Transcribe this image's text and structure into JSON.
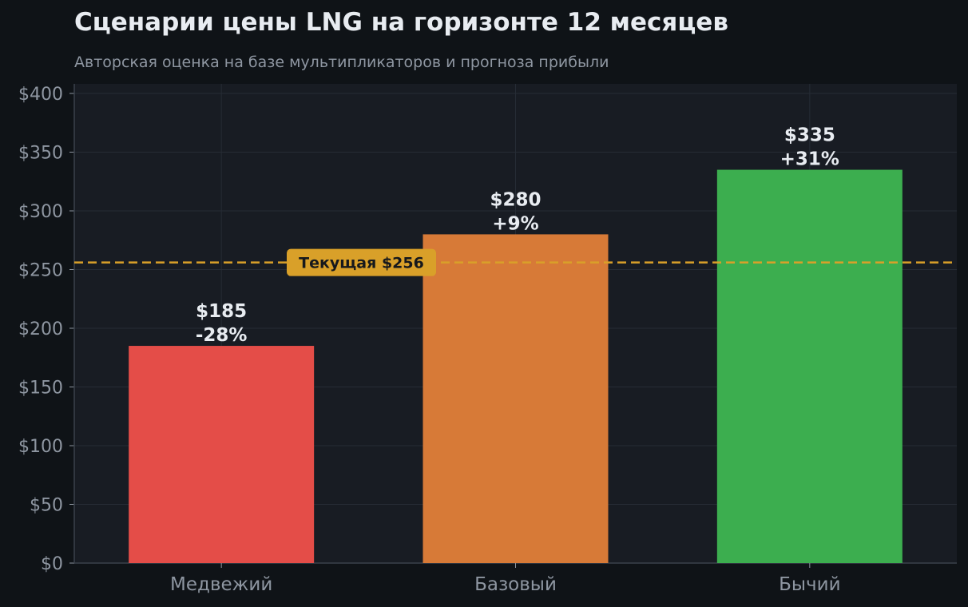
{
  "chart_data": {
    "type": "bar",
    "title": "Сценарии цены LNG на горизонте 12 месяцев",
    "subtitle": "Авторская оценка на базе мультипликаторов и прогноза прибыли",
    "categories": [
      "Медвежий",
      "Базовый",
      "Бычий"
    ],
    "values": [
      185,
      280,
      335
    ],
    "value_labels": [
      "$185",
      "$280",
      "$335"
    ],
    "change_labels": [
      "-28%",
      "+9%",
      "+31%"
    ],
    "bar_colors": [
      "#e44d48",
      "#d77a37",
      "#3cae4f"
    ],
    "ylim": [
      0,
      408
    ],
    "y_ticks": [
      0,
      50,
      100,
      150,
      200,
      250,
      300,
      350,
      400
    ],
    "y_tick_labels": [
      "$0",
      "$50",
      "$100",
      "$150",
      "$200",
      "$250",
      "$300",
      "$350",
      "$400"
    ],
    "reference_line": {
      "value": 256,
      "label": "Текущая $256",
      "color": "#d9a029"
    },
    "grid": true,
    "colors": {
      "background": "#0f1317",
      "plot_background": "#181c23",
      "text": "#e8ecf1",
      "muted_text": "#8e96a1",
      "grid": "#262c35"
    }
  }
}
